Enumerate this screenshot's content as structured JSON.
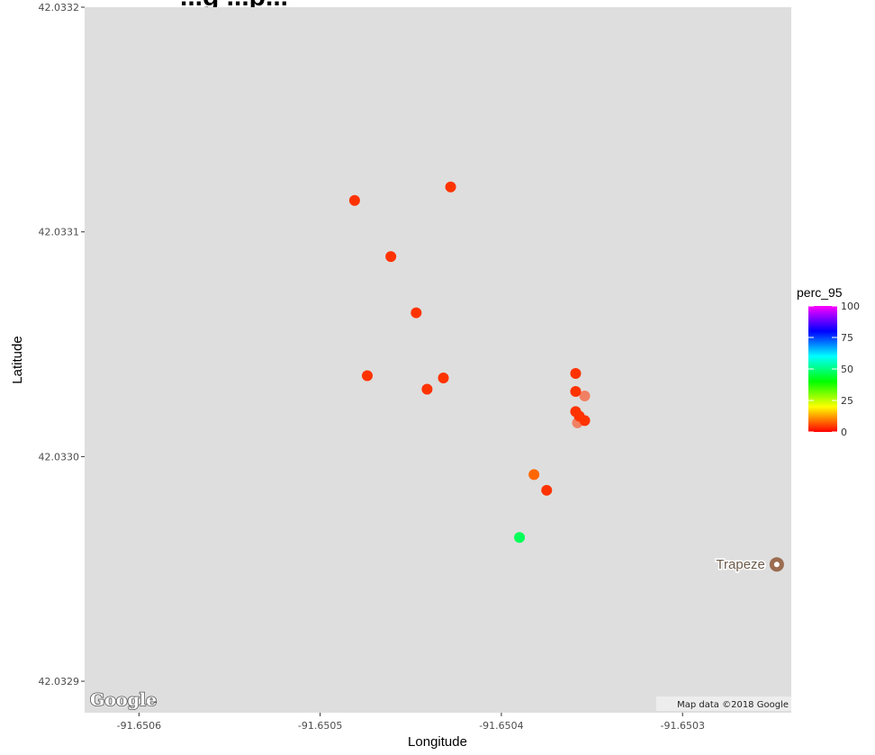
{
  "chart_data": {
    "type": "scatter",
    "title": "...g ...p...",
    "xlabel": "Longitude",
    "ylabel": "Latitude",
    "xlim": [
      -91.65063,
      -91.65024
    ],
    "ylim": [
      42.032886,
      42.0332
    ],
    "x_ticks": [
      {
        "value": -91.6506,
        "label": "-91.6506"
      },
      {
        "value": -91.6505,
        "label": "-91.6505"
      },
      {
        "value": -91.6504,
        "label": "-91.6504"
      },
      {
        "value": -91.6503,
        "label": "-91.6503"
      }
    ],
    "y_ticks": [
      {
        "value": 42.0329,
        "label": "42.0329"
      },
      {
        "value": 42.033,
        "label": "42.0330"
      },
      {
        "value": 42.0331,
        "label": "42.0331"
      },
      {
        "value": 42.0332,
        "label": "42.0332"
      }
    ],
    "grid": false,
    "color_legend": {
      "title": "perc_95",
      "min": 0,
      "max": 100,
      "ticks": [
        0,
        25,
        50,
        75,
        100
      ],
      "gradient": [
        "#ff0000",
        "#ffff00",
        "#00ff00",
        "#00ffff",
        "#0000ff",
        "#ff00ff"
      ],
      "placement": "right"
    },
    "points": [
      {
        "x": -91.650481,
        "y": 42.033114,
        "perc_95": 4,
        "alpha": 1.0
      },
      {
        "x": -91.650428,
        "y": 42.03312,
        "perc_95": 4,
        "alpha": 1.0
      },
      {
        "x": -91.650461,
        "y": 42.033089,
        "perc_95": 4,
        "alpha": 1.0
      },
      {
        "x": -91.650447,
        "y": 42.033064,
        "perc_95": 4,
        "alpha": 1.0
      },
      {
        "x": -91.650474,
        "y": 42.033036,
        "perc_95": 4,
        "alpha": 1.0
      },
      {
        "x": -91.650441,
        "y": 42.03303,
        "perc_95": 4,
        "alpha": 1.0
      },
      {
        "x": -91.650432,
        "y": 42.033035,
        "perc_95": 4,
        "alpha": 1.0
      },
      {
        "x": -91.650359,
        "y": 42.033037,
        "perc_95": 4,
        "alpha": 1.0
      },
      {
        "x": -91.650359,
        "y": 42.033029,
        "perc_95": 4,
        "alpha": 1.0
      },
      {
        "x": -91.650354,
        "y": 42.033027,
        "perc_95": 4,
        "alpha": 0.55
      },
      {
        "x": -91.650359,
        "y": 42.03302,
        "perc_95": 4,
        "alpha": 1.0
      },
      {
        "x": -91.650357,
        "y": 42.033018,
        "perc_95": 4,
        "alpha": 1.0
      },
      {
        "x": -91.650354,
        "y": 42.033016,
        "perc_95": 4,
        "alpha": 1.0
      },
      {
        "x": -91.650358,
        "y": 42.033015,
        "perc_95": 4,
        "alpha": 0.55
      },
      {
        "x": -91.650382,
        "y": 42.032992,
        "perc_95": 8,
        "alpha": 1.0
      },
      {
        "x": -91.650375,
        "y": 42.032985,
        "perc_95": 4,
        "alpha": 1.0
      },
      {
        "x": -91.65039,
        "y": 42.032964,
        "perc_95": 47,
        "alpha": 1.0
      }
    ],
    "landmark": {
      "name": "Trapeze",
      "x": -91.650248,
      "y": 42.032952,
      "color": "#9b6c50"
    },
    "attribution": "Map data ©2018 Google",
    "logo": "Google",
    "panel_color": "#dedede"
  }
}
